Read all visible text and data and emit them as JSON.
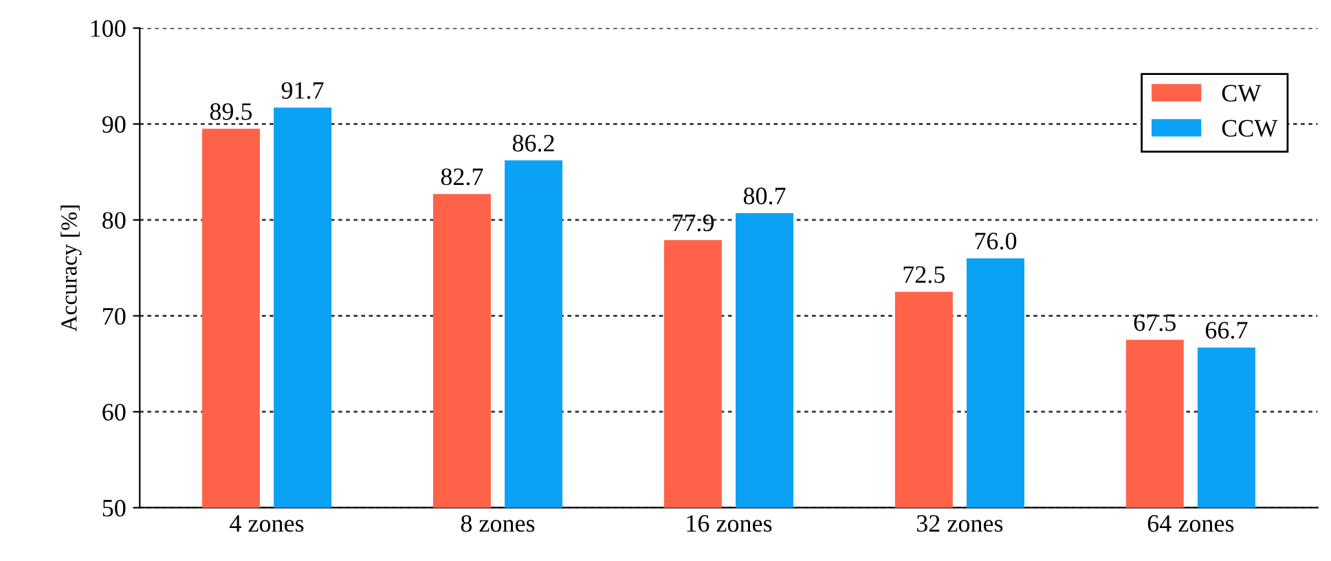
{
  "chart_data": {
    "type": "bar",
    "ylabel": "Accuracy [%]",
    "categories": [
      "4 zones",
      "8 zones",
      "16 zones",
      "32 zones",
      "64 zones"
    ],
    "series": [
      {
        "name": "CW",
        "color": "#fe6349",
        "values": [
          89.5,
          82.7,
          77.9,
          72.5,
          67.5
        ],
        "value_labels": [
          "89.5",
          "82.7",
          "77.9",
          "72.5",
          "67.5"
        ]
      },
      {
        "name": "CCW",
        "color": "#0ba2f6",
        "values": [
          91.7,
          86.2,
          80.7,
          76.0,
          66.7
        ],
        "value_labels": [
          "91.7",
          "86.2",
          "80.7",
          "76.0",
          "66.7"
        ]
      }
    ],
    "ylim": [
      50,
      100
    ],
    "yticks": [
      50,
      60,
      70,
      80,
      90,
      100
    ],
    "grid": "y",
    "legend": "top right"
  }
}
